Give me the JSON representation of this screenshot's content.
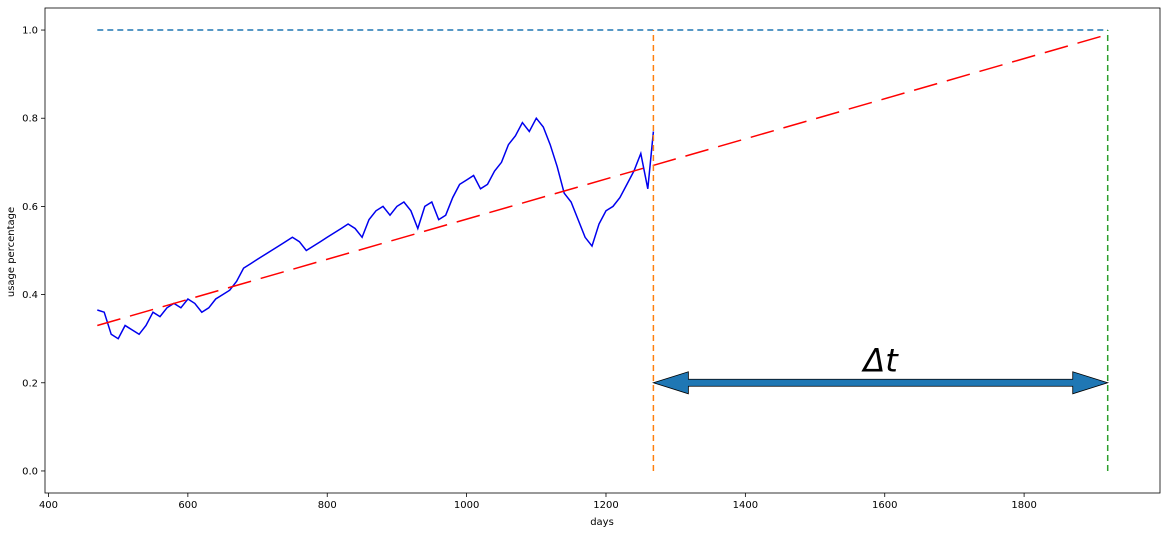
{
  "chart_data": {
    "type": "line",
    "title": "",
    "xlabel": "days",
    "ylabel": "usage percentage",
    "xlim": [
      395,
      1995
    ],
    "ylim": [
      -0.05,
      1.05
    ],
    "xticks": [
      400,
      600,
      800,
      1000,
      1200,
      1400,
      1600,
      1800
    ],
    "yticks": [
      0.0,
      0.2,
      0.4,
      0.6,
      0.8,
      1.0
    ],
    "xtick_labels": [
      "400",
      "600",
      "800",
      "1000",
      "1200",
      "1400",
      "1600",
      "1800"
    ],
    "ytick_labels": [
      "0.0",
      "0.2",
      "0.4",
      "0.6",
      "0.8",
      "1.0"
    ],
    "grid": false,
    "legend": "none",
    "series": [
      {
        "style": "solid",
        "color": "#0000ee",
        "x": [
          470,
          480,
          490,
          500,
          510,
          520,
          530,
          540,
          550,
          560,
          570,
          580,
          590,
          600,
          610,
          620,
          630,
          640,
          650,
          660,
          670,
          680,
          690,
          700,
          710,
          720,
          730,
          740,
          750,
          760,
          770,
          780,
          790,
          800,
          810,
          820,
          830,
          840,
          850,
          860,
          870,
          880,
          890,
          900,
          910,
          920,
          930,
          940,
          950,
          960,
          970,
          980,
          990,
          1000,
          1010,
          1020,
          1030,
          1040,
          1050,
          1060,
          1070,
          1080,
          1090,
          1100,
          1110,
          1120,
          1130,
          1140,
          1150,
          1160,
          1170,
          1180,
          1190,
          1200,
          1210,
          1220,
          1230,
          1240,
          1250,
          1260,
          1268
        ],
        "y": [
          0.365,
          0.36,
          0.31,
          0.3,
          0.33,
          0.32,
          0.31,
          0.33,
          0.36,
          0.35,
          0.37,
          0.38,
          0.37,
          0.39,
          0.38,
          0.36,
          0.37,
          0.39,
          0.4,
          0.41,
          0.43,
          0.46,
          0.47,
          0.48,
          0.49,
          0.5,
          0.51,
          0.52,
          0.53,
          0.52,
          0.5,
          0.51,
          0.52,
          0.53,
          0.54,
          0.55,
          0.56,
          0.55,
          0.53,
          0.57,
          0.59,
          0.6,
          0.58,
          0.6,
          0.61,
          0.59,
          0.55,
          0.6,
          0.61,
          0.57,
          0.58,
          0.62,
          0.65,
          0.66,
          0.67,
          0.64,
          0.65,
          0.68,
          0.7,
          0.74,
          0.76,
          0.79,
          0.77,
          0.8,
          0.78,
          0.74,
          0.69,
          0.63,
          0.61,
          0.57,
          0.53,
          0.51,
          0.56,
          0.59,
          0.6,
          0.62,
          0.65,
          0.68,
          0.72,
          0.64,
          0.77
        ]
      },
      {
        "style": "long-dash",
        "color": "#ff0000",
        "x": [
          470,
          1920
        ],
        "y": [
          0.33,
          0.99
        ]
      },
      {
        "style": "dashed",
        "color": "#1f77b4",
        "x": [
          470,
          1920
        ],
        "y": [
          1.0,
          1.0
        ]
      },
      {
        "style": "dashed",
        "color": "#ff7f0e",
        "x": [
          1268,
          1268
        ],
        "y": [
          0.0,
          1.0
        ]
      },
      {
        "style": "dashed",
        "color": "#2ca02c",
        "x": [
          1920,
          1920
        ],
        "y": [
          0.0,
          1.0
        ]
      }
    ],
    "annotations": [
      {
        "type": "double-arrow",
        "x_from": 1268,
        "x_to": 1920,
        "y": 0.2,
        "color": "#1f77b4",
        "label": "Δt",
        "label_x": 1594,
        "label_y": 0.25
      }
    ]
  }
}
